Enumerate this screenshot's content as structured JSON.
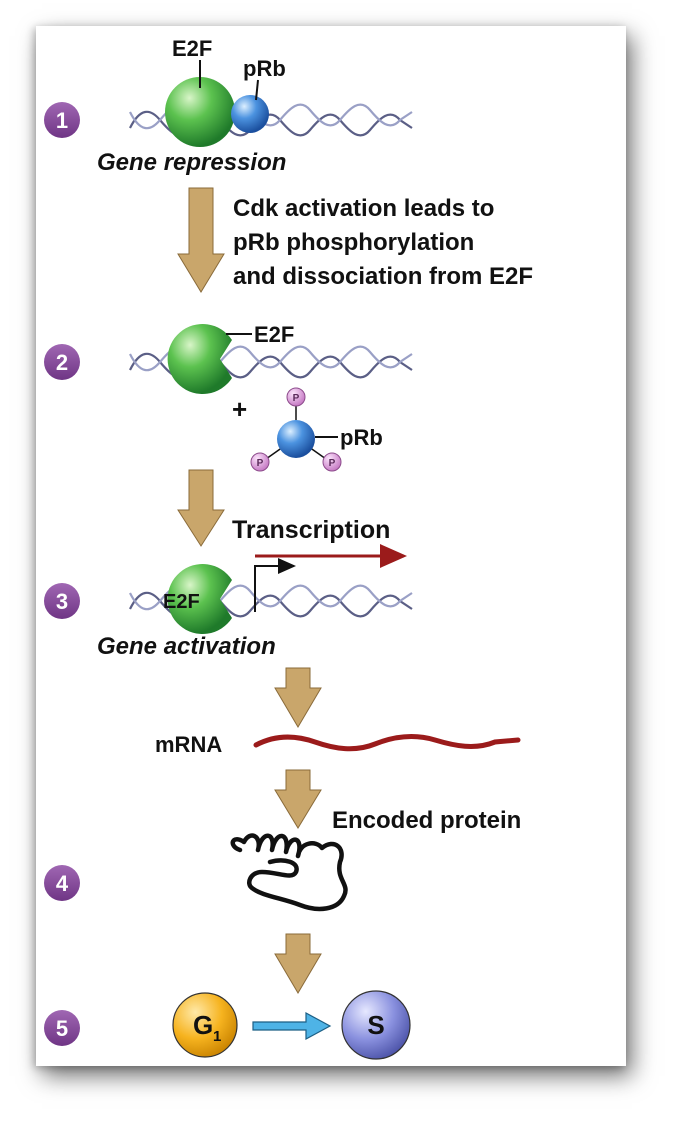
{
  "steps": [
    "1",
    "2",
    "3",
    "4",
    "5"
  ],
  "labels": {
    "e2f_top": "E2F",
    "prb_top": "pRb",
    "gene_repression": "Gene repression",
    "cdk_line1": "Cdk activation leads to",
    "cdk_line2": "pRb phosphorylation",
    "cdk_line3": "and dissociation from E2F",
    "e2f_step2": "E2F",
    "plus": "+",
    "prb_step2": "pRb",
    "phospho": "P",
    "transcription": "Transcription",
    "e2f_step3": "E2F",
    "gene_activation": "Gene activation",
    "mrna": "mRNA",
    "encoded_protein": "Encoded protein",
    "g1_letter": "G",
    "g1_sub": "1",
    "s_phase": "S"
  },
  "colors": {
    "step_badge": "#8b4d9e",
    "e2f": "#3aa83a",
    "prb": "#3f7fd0",
    "phospho": "#d98fd6",
    "arrow": "#c9a66b",
    "mrna": "#9b1b1b",
    "g1": "#f2a817",
    "s": "#7f86d6",
    "g1_to_s_arrow": "#4eb3e6"
  }
}
